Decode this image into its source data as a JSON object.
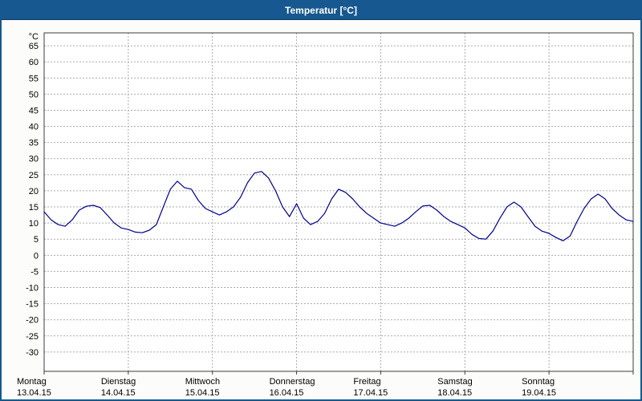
{
  "window": {
    "title": "Temperatur [°C]"
  },
  "colors": {
    "titlebar": "#16588f",
    "window_border": "#16588f",
    "plot_background": "#ffffff",
    "grid": "#aaaaaa",
    "frame": "#3c3c3c",
    "line": "#000090",
    "text": "#000000"
  },
  "chart_data": {
    "type": "line",
    "title": "Temperatur [°C]",
    "ylabel": "°C",
    "xlabel": "",
    "grid": true,
    "legend_position": "none",
    "ylim": [
      -36,
      69
    ],
    "yticks": [
      65,
      60,
      55,
      50,
      45,
      40,
      35,
      30,
      25,
      20,
      15,
      10,
      5,
      0,
      -5,
      -10,
      -15,
      -20,
      -25,
      -30
    ],
    "x_days": [
      {
        "name": "Montag",
        "date": "13.04.15"
      },
      {
        "name": "Dienstag",
        "date": "14.04.15"
      },
      {
        "name": "Mittwoch",
        "date": "15.04.15"
      },
      {
        "name": "Donnerstag",
        "date": "16.04.15"
      },
      {
        "name": "Freitag",
        "date": "17.04.15"
      },
      {
        "name": "Samstag",
        "date": "18.04.15"
      },
      {
        "name": "Sonntag",
        "date": "19.04.15"
      }
    ],
    "x_step_hours": 2,
    "x_total_hours": 168,
    "series_name": "Temperatur",
    "values": [
      13.5,
      11,
      9.5,
      9,
      11,
      14,
      15.2,
      15.5,
      14.8,
      12.5,
      10,
      8.5,
      8,
      7.2,
      7,
      7.8,
      9.5,
      15,
      20.5,
      23,
      21,
      20.5,
      17,
      14.5,
      13.5,
      12.5,
      13.5,
      15,
      18,
      22.5,
      25.5,
      26,
      24,
      20,
      15,
      12,
      16,
      11.5,
      9.5,
      10.5,
      13,
      17.5,
      20.5,
      19.5,
      17.5,
      15,
      13,
      11.5,
      10,
      9.5,
      9,
      10,
      11.5,
      13.5,
      15.3,
      15.5,
      14,
      12,
      10.5,
      9.5,
      8.5,
      6.5,
      5.2,
      5,
      7.5,
      11.5,
      15,
      16.5,
      15,
      12,
      9,
      7.5,
      6.8,
      5.5,
      4.5,
      6,
      10.5,
      14.5,
      17.5,
      19,
      17.5,
      14.5,
      12.5,
      11,
      10.5
    ]
  }
}
